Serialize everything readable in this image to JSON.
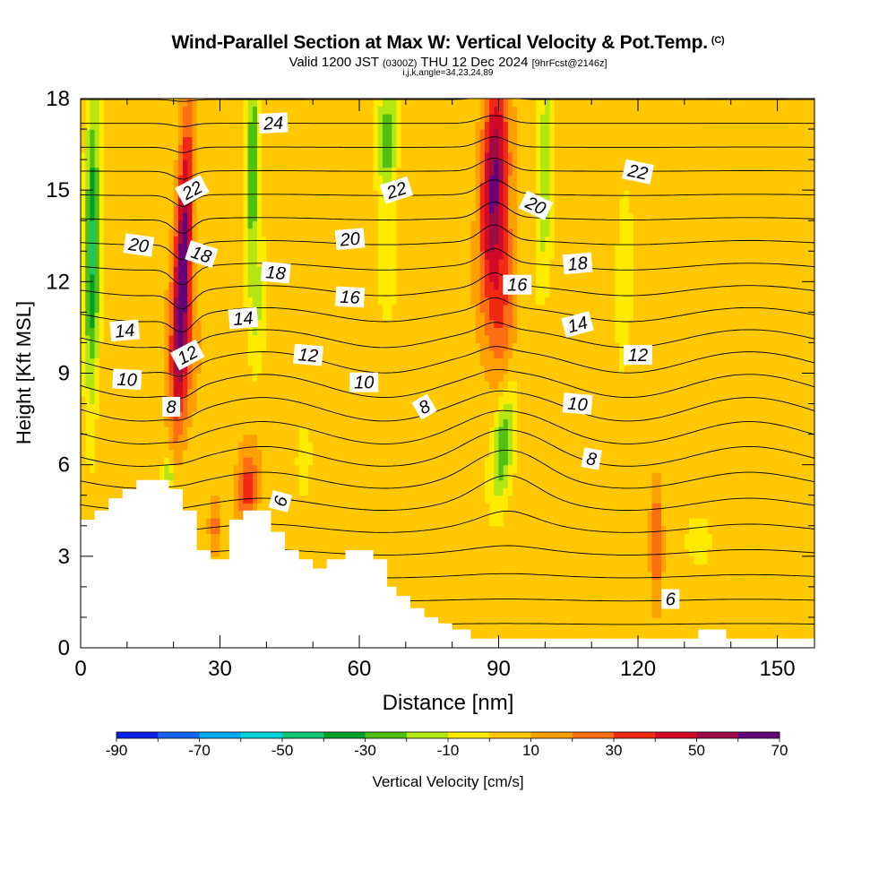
{
  "header": {
    "title": "Wind-Parallel Section at Max W: Vertical Velocity & Pot.Temp.",
    "copyright": "(C)",
    "valid_prefix": "Valid 1200 JST",
    "valid_zulu": "(0300Z)",
    "valid_date": "THU 12 Dec 2024",
    "forecast_info": "[9hrFcst@2146z]",
    "indices": "i,j,k,angle=34,23,24,89"
  },
  "chart_data": {
    "type": "heatmap",
    "title": "Wind-Parallel Section at Max W: Vertical Velocity & Pot.Temp.",
    "xlabel": "Distance [nm]",
    "ylabel": "Height [Kft MSL]",
    "xlim": [
      0,
      158
    ],
    "ylim": [
      0,
      18
    ],
    "xticks": [
      0,
      30,
      60,
      90,
      120,
      150
    ],
    "yticks": [
      0,
      3,
      6,
      9,
      12,
      15,
      18
    ],
    "grid": false,
    "colorbar": {
      "label": "Vertical Velocity [cm/s]",
      "tick_labels": [
        "-90",
        "-70",
        "-50",
        "-30",
        "-10",
        "10",
        "30",
        "50",
        "70"
      ],
      "levels": [
        -90,
        -80,
        -70,
        -60,
        -50,
        -40,
        -30,
        -20,
        -10,
        0,
        10,
        20,
        30,
        40,
        50,
        60,
        70
      ],
      "colors": [
        "#0a1ee6",
        "#1464f0",
        "#00aaf0",
        "#00d2dc",
        "#14c878",
        "#00a028",
        "#50c014",
        "#b4e614",
        "#ffeb00",
        "#ffc800",
        "#ffa000",
        "#ff6e14",
        "#f02814",
        "#d20a28",
        "#a00a46",
        "#64007a"
      ]
    },
    "terrain": {
      "x": [
        0,
        3,
        3,
        6,
        6,
        9,
        9,
        12,
        12,
        19,
        19,
        22,
        22,
        25,
        25,
        28,
        28,
        32,
        32,
        35,
        35,
        41,
        41,
        44,
        44,
        47,
        47,
        50,
        50,
        53,
        53,
        57,
        57,
        63,
        63,
        66,
        66,
        68,
        68,
        71,
        71,
        74,
        74,
        77,
        77,
        80,
        80,
        84,
        84,
        98,
        98,
        133,
        133,
        139,
        139,
        158
      ],
      "height_kft": [
        4.2,
        4.2,
        4.5,
        4.5,
        4.9,
        4.9,
        5.2,
        5.2,
        5.5,
        5.5,
        5.2,
        5.2,
        4.5,
        4.5,
        3.2,
        3.2,
        2.9,
        2.9,
        4.2,
        4.2,
        4.5,
        4.5,
        3.8,
        3.8,
        3.2,
        3.2,
        2.9,
        2.9,
        2.6,
        2.6,
        2.9,
        2.9,
        3.2,
        3.2,
        2.9,
        2.9,
        2.0,
        2.0,
        1.7,
        1.7,
        1.3,
        1.3,
        1.0,
        1.0,
        0.8,
        0.8,
        0.6,
        0.6,
        0.3,
        0.3,
        0.3,
        0.3,
        0.6,
        0.6,
        0.3,
        0.3
      ]
    },
    "w_features": [
      {
        "x": 22,
        "z": 12.6,
        "sx": 1.8,
        "sz": 4.6,
        "w": 64,
        "tilt": 0.25
      },
      {
        "x": 22,
        "z": 9.3,
        "sx": 3.2,
        "sz": 2.0,
        "w": 20,
        "tilt": 0.0
      },
      {
        "x": 89,
        "z": 15.2,
        "sx": 2.8,
        "sz": 3.6,
        "w": 58,
        "tilt": 0.22
      },
      {
        "x": 91,
        "z": 11.2,
        "sx": 3.0,
        "sz": 2.5,
        "w": 22,
        "tilt": 0.3
      },
      {
        "x": 2.5,
        "z": 13.2,
        "sx": 1.6,
        "sz": 5.0,
        "w": -46,
        "tilt": 0.05
      },
      {
        "x": 37,
        "z": 15.8,
        "sx": 1.5,
        "sz": 3.2,
        "w": -38,
        "tilt": 0.1
      },
      {
        "x": 38,
        "z": 11.0,
        "sx": 1.8,
        "sz": 2.5,
        "w": -15,
        "tilt": 0.15
      },
      {
        "x": 66,
        "z": 16.6,
        "sx": 2.2,
        "sz": 2.2,
        "w": -32,
        "tilt": 0.1
      },
      {
        "x": 66,
        "z": 12.5,
        "sx": 1.8,
        "sz": 1.6,
        "w": -12,
        "tilt": 0.1
      },
      {
        "x": 100,
        "z": 15.5,
        "sx": 1.8,
        "sz": 3.0,
        "w": -28,
        "tilt": 0.15
      },
      {
        "x": 91,
        "z": 6.6,
        "sx": 2.4,
        "sz": 1.9,
        "w": -34,
        "tilt": 0.7
      },
      {
        "x": 117,
        "z": 12.0,
        "sx": 1.8,
        "sz": 2.6,
        "w": -16,
        "tilt": 0.1
      },
      {
        "x": 19,
        "z": 5.6,
        "sx": 1.5,
        "sz": 0.6,
        "w": -25,
        "tilt": 0.0
      },
      {
        "x": 48,
        "z": 6.0,
        "sx": 1.8,
        "sz": 1.4,
        "w": -10,
        "tilt": 0.0
      },
      {
        "x": 36,
        "z": 5.2,
        "sx": 2.2,
        "sz": 1.3,
        "w": 32,
        "tilt": 0.3
      },
      {
        "x": 29,
        "z": 4.0,
        "sx": 1.2,
        "sz": 0.8,
        "w": 20,
        "tilt": 0.0
      },
      {
        "x": 124,
        "z": 3.5,
        "sx": 1.3,
        "sz": 1.8,
        "w": 30,
        "tilt": 0.0
      },
      {
        "x": 134,
        "z": 3.5,
        "sx": 5.0,
        "sz": 1.5,
        "w": -6,
        "tilt": 0.0
      }
    ],
    "theta_contours": {
      "unit": "C",
      "levels": [
        4,
        5,
        6,
        7,
        8,
        9,
        10,
        11,
        12,
        13,
        14,
        15,
        16,
        17,
        18,
        19,
        20,
        21,
        22,
        23,
        24,
        25,
        26,
        27
      ],
      "labels": [
        {
          "text": "24",
          "x": 41.5,
          "z": 17.2,
          "angle": -3
        },
        {
          "text": "22",
          "x": 24,
          "z": 15.0,
          "angle": -28
        },
        {
          "text": "22",
          "x": 68,
          "z": 15.0,
          "angle": -18
        },
        {
          "text": "22",
          "x": 120,
          "z": 15.6,
          "angle": 12
        },
        {
          "text": "20",
          "x": 12.5,
          "z": 13.2,
          "angle": 8
        },
        {
          "text": "20",
          "x": 58,
          "z": 13.4,
          "angle": -5
        },
        {
          "text": "20",
          "x": 98,
          "z": 14.5,
          "angle": 25
        },
        {
          "text": "18",
          "x": 26,
          "z": 12.9,
          "angle": 18
        },
        {
          "text": "18",
          "x": 42,
          "z": 12.3,
          "angle": 5
        },
        {
          "text": "18",
          "x": 107,
          "z": 12.6,
          "angle": -5
        },
        {
          "text": "16",
          "x": 58,
          "z": 11.5,
          "angle": 3
        },
        {
          "text": "16",
          "x": 94,
          "z": 11.9,
          "angle": 0
        },
        {
          "text": "14",
          "x": 9.5,
          "z": 10.4,
          "angle": -5
        },
        {
          "text": "14",
          "x": 35,
          "z": 10.8,
          "angle": -5
        },
        {
          "text": "14",
          "x": 107,
          "z": 10.6,
          "angle": -15
        },
        {
          "text": "12",
          "x": 23,
          "z": 9.6,
          "angle": -28
        },
        {
          "text": "12",
          "x": 49,
          "z": 9.6,
          "angle": 5
        },
        {
          "text": "12",
          "x": 120,
          "z": 9.6,
          "angle": 0
        },
        {
          "text": "10",
          "x": 10,
          "z": 8.8,
          "angle": 3
        },
        {
          "text": "10",
          "x": 61,
          "z": 8.7,
          "angle": 0
        },
        {
          "text": "10",
          "x": 107,
          "z": 8.0,
          "angle": 5
        },
        {
          "text": "8",
          "x": 19.5,
          "z": 7.9,
          "angle": 0
        },
        {
          "text": "8",
          "x": 74,
          "z": 7.9,
          "angle": -30
        },
        {
          "text": "8",
          "x": 110,
          "z": 6.2,
          "angle": 10
        },
        {
          "text": "6",
          "x": 43,
          "z": 4.8,
          "angle": -75
        },
        {
          "text": "6",
          "x": 127,
          "z": 1.6,
          "angle": 0
        }
      ]
    }
  }
}
